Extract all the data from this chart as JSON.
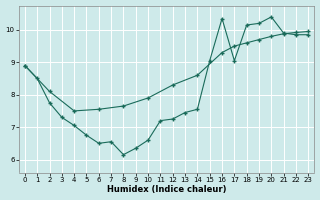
{
  "xlabel": "Humidex (Indice chaleur)",
  "background_color": "#ceeaea",
  "grid_color": "#b8d8d8",
  "line_color": "#1a6b5a",
  "line1_x": [
    0,
    1,
    2,
    3,
    4,
    5,
    6,
    7,
    8,
    9,
    10,
    11,
    12,
    13,
    14,
    15,
    16,
    17,
    18,
    19,
    20,
    21,
    22,
    23
  ],
  "line1_y": [
    8.9,
    8.5,
    7.75,
    7.3,
    7.05,
    6.75,
    6.5,
    6.55,
    6.15,
    6.35,
    6.6,
    7.2,
    7.25,
    7.45,
    7.55,
    9.05,
    10.35,
    9.05,
    10.15,
    10.2,
    10.4,
    9.9,
    9.85,
    9.85
  ],
  "line2_x": [
    0,
    2,
    4,
    6,
    8,
    10,
    12,
    14,
    16,
    17,
    18,
    19,
    20,
    21,
    22,
    23
  ],
  "line2_y": [
    8.9,
    8.1,
    7.5,
    7.55,
    7.65,
    7.9,
    8.3,
    8.6,
    9.3,
    9.5,
    9.6,
    9.7,
    9.8,
    9.88,
    9.92,
    9.95
  ],
  "xlim": [
    -0.5,
    23.5
  ],
  "ylim": [
    5.6,
    10.75
  ],
  "yticks": [
    6,
    7,
    8,
    9,
    10
  ],
  "xticks": [
    0,
    1,
    2,
    3,
    4,
    5,
    6,
    7,
    8,
    9,
    10,
    11,
    12,
    13,
    14,
    15,
    16,
    17,
    18,
    19,
    20,
    21,
    22,
    23
  ],
  "figsize": [
    3.2,
    2.0
  ],
  "dpi": 100
}
